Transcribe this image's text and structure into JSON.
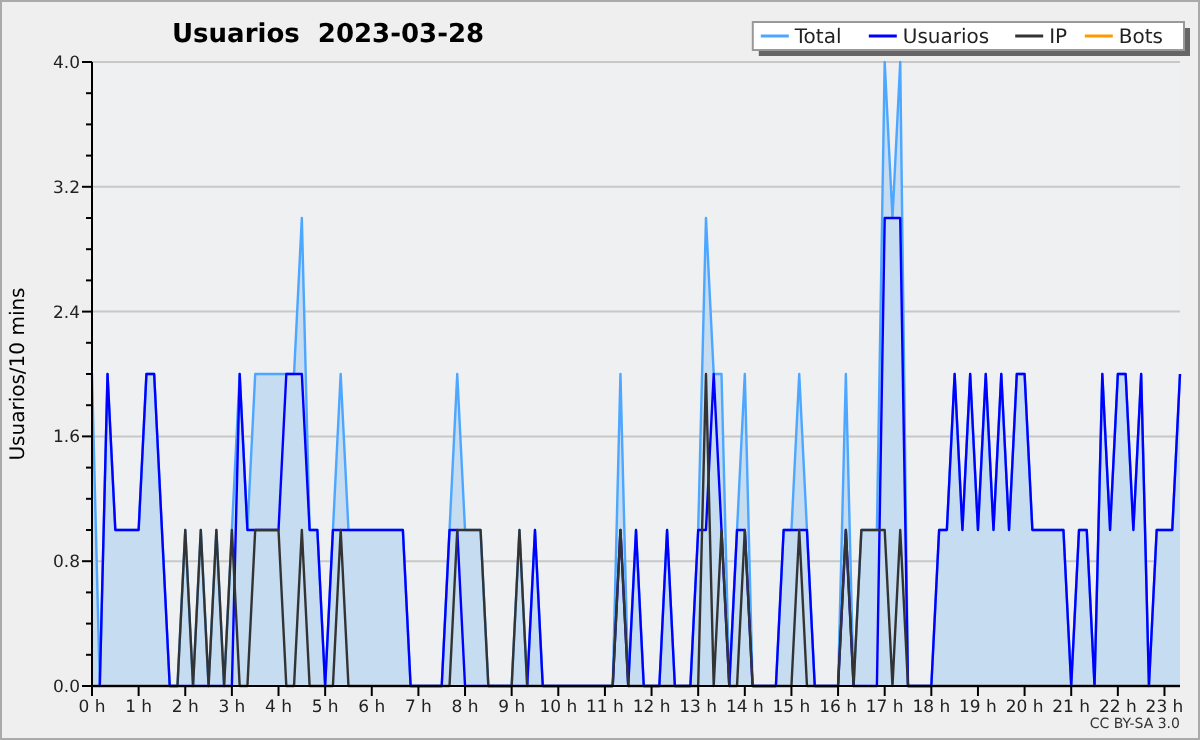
{
  "chart_data": {
    "type": "line",
    "title": "Usuarios  2023-03-28",
    "ylabel": "Usuarios/10 mins",
    "annotations": [
      "CC BY-SA 3.0"
    ],
    "x": [
      0,
      0.167,
      0.333,
      0.5,
      0.667,
      0.833,
      1,
      1.167,
      1.333,
      1.5,
      1.667,
      1.833,
      2,
      2.167,
      2.333,
      2.5,
      2.667,
      2.833,
      3,
      3.167,
      3.333,
      3.5,
      3.667,
      3.833,
      4,
      4.167,
      4.333,
      4.5,
      4.667,
      4.833,
      5,
      5.167,
      5.333,
      5.5,
      5.667,
      5.833,
      6,
      6.167,
      6.333,
      6.5,
      6.667,
      6.833,
      7,
      7.167,
      7.333,
      7.5,
      7.667,
      7.833,
      8,
      8.167,
      8.333,
      8.5,
      8.667,
      8.833,
      9,
      9.167,
      9.333,
      9.5,
      9.667,
      9.833,
      10,
      10.167,
      10.333,
      10.5,
      10.667,
      10.833,
      11,
      11.167,
      11.333,
      11.5,
      11.667,
      11.833,
      12,
      12.167,
      12.333,
      12.5,
      12.667,
      12.833,
      13,
      13.167,
      13.333,
      13.5,
      13.667,
      13.833,
      14,
      14.167,
      14.333,
      14.5,
      14.667,
      14.833,
      15,
      15.167,
      15.333,
      15.5,
      15.667,
      15.833,
      16,
      16.167,
      16.333,
      16.5,
      16.667,
      16.833,
      17,
      17.167,
      17.333,
      17.5,
      17.667,
      17.833,
      18,
      18.167,
      18.333,
      18.5,
      18.667,
      18.833,
      19,
      19.167,
      19.333,
      19.5,
      19.667,
      19.833,
      20,
      20.167,
      20.333,
      20.5,
      20.667,
      20.833,
      21,
      21.167,
      21.333,
      21.5,
      21.667,
      21.833,
      22,
      22.167,
      22.333,
      22.5,
      22.667,
      22.833,
      23,
      23.167,
      23.333
    ],
    "series": [
      {
        "name": "Total",
        "type": "area",
        "color": "#4da6ff",
        "values": [
          2,
          0,
          2,
          1,
          1,
          1,
          1,
          2,
          2,
          1,
          0,
          0,
          1,
          0,
          1,
          0,
          1,
          0,
          1,
          2,
          1,
          2,
          2,
          2,
          2,
          2,
          2,
          3,
          1,
          1,
          0,
          1,
          2,
          1,
          1,
          1,
          1,
          1,
          1,
          1,
          1,
          0,
          0,
          0,
          0,
          0,
          1,
          2,
          1,
          1,
          1,
          0,
          0,
          0,
          0,
          1,
          0,
          1,
          0,
          0,
          0,
          0,
          0,
          0,
          0,
          0,
          0,
          0,
          2,
          0,
          1,
          0,
          0,
          0,
          1,
          0,
          0,
          0,
          1,
          3,
          2,
          2,
          0,
          1,
          2,
          0,
          0,
          0,
          0,
          1,
          1,
          2,
          1,
          0,
          0,
          0,
          0,
          2,
          0,
          1,
          1,
          1,
          4,
          3,
          4,
          0,
          0,
          0,
          0,
          1,
          1,
          2,
          1,
          2,
          1,
          2,
          1,
          2,
          1,
          2,
          2,
          1,
          1,
          1,
          1,
          1,
          0,
          1,
          1,
          0,
          2,
          1,
          2,
          2,
          1,
          2,
          0,
          1,
          1,
          1,
          2
        ]
      },
      {
        "name": "Usuarios",
        "color": "#0000ff",
        "values": [
          null,
          0,
          2,
          1,
          1,
          1,
          1,
          2,
          2,
          1,
          0,
          0,
          0,
          0,
          0,
          0,
          0,
          0,
          0,
          2,
          1,
          1,
          1,
          1,
          1,
          2,
          2,
          2,
          1,
          1,
          0,
          1,
          1,
          1,
          1,
          1,
          1,
          1,
          1,
          1,
          1,
          0,
          0,
          0,
          0,
          0,
          1,
          1,
          0,
          0,
          0,
          0,
          0,
          0,
          0,
          0,
          0,
          1,
          0,
          0,
          0,
          0,
          0,
          0,
          0,
          0,
          0,
          0,
          1,
          0,
          1,
          0,
          0,
          0,
          1,
          0,
          0,
          0,
          1,
          1,
          2,
          1,
          0,
          1,
          1,
          0,
          0,
          0,
          0,
          1,
          1,
          1,
          1,
          0,
          0,
          0,
          0,
          1,
          0,
          0,
          0,
          0,
          3,
          3,
          3,
          0,
          0,
          0,
          0,
          1,
          1,
          2,
          1,
          2,
          1,
          2,
          1,
          2,
          1,
          2,
          2,
          1,
          1,
          1,
          1,
          1,
          0,
          1,
          1,
          0,
          2,
          1,
          2,
          2,
          1,
          2,
          0,
          1,
          1,
          1,
          2
        ]
      },
      {
        "name": "IP",
        "color": "#333333",
        "values": [
          0,
          0,
          0,
          0,
          0,
          0,
          0,
          0,
          0,
          0,
          0,
          0,
          1,
          0,
          1,
          0,
          1,
          0,
          1,
          0,
          0,
          1,
          1,
          1,
          1,
          0,
          0,
          1,
          0,
          0,
          0,
          0,
          1,
          0,
          0,
          0,
          0,
          0,
          0,
          0,
          0,
          0,
          0,
          0,
          0,
          0,
          0,
          1,
          1,
          1,
          1,
          0,
          0,
          0,
          0,
          1,
          0,
          0,
          0,
          0,
          0,
          0,
          0,
          0,
          0,
          0,
          0,
          0,
          1,
          0,
          0,
          0,
          0,
          0,
          0,
          0,
          0,
          0,
          0,
          2,
          0,
          1,
          0,
          0,
          1,
          0,
          0,
          0,
          0,
          0,
          0,
          1,
          0,
          0,
          0,
          0,
          0,
          1,
          0,
          1,
          1,
          1,
          1,
          0,
          1,
          0,
          0,
          0,
          0,
          0,
          0,
          0,
          0,
          0,
          0,
          0,
          0,
          0,
          0,
          0,
          0,
          0,
          0,
          0,
          0,
          0,
          0,
          0,
          0,
          0,
          0,
          0,
          0,
          0,
          0,
          0,
          0,
          0,
          0,
          0,
          0
        ]
      },
      {
        "name": "Bots",
        "color": "#ff9900",
        "values": [
          null,
          null,
          null,
          null,
          null,
          null,
          null,
          null,
          null,
          null,
          null,
          null,
          null,
          null,
          null,
          null,
          null,
          null,
          null,
          null,
          null,
          null,
          null,
          null,
          null,
          null,
          null,
          null,
          null,
          null,
          null,
          null,
          null,
          null,
          null,
          null,
          null,
          null,
          null,
          null,
          null,
          null,
          null,
          null,
          null,
          null,
          null,
          null,
          null,
          null,
          null,
          null,
          null,
          null,
          null,
          null,
          null,
          null,
          null,
          null,
          null,
          null,
          null,
          null,
          null,
          null,
          null,
          null,
          null,
          null,
          null,
          null,
          null,
          null,
          null,
          null,
          null,
          null,
          null,
          null,
          null,
          null,
          null,
          null,
          null,
          null,
          null,
          null,
          null,
          null,
          null,
          null,
          null,
          null,
          null,
          null,
          null,
          null,
          null,
          null,
          null,
          null,
          null,
          null,
          null,
          null,
          null,
          null,
          null,
          null,
          null,
          null,
          null,
          null,
          null,
          null,
          null,
          null,
          null,
          null,
          null,
          null,
          null,
          null,
          null,
          null,
          null,
          null,
          null,
          null,
          null,
          null,
          null,
          null,
          null,
          null,
          null,
          null,
          null,
          null,
          null
        ]
      }
    ],
    "xlim": [
      0,
      23.333
    ],
    "xticks": [
      {
        "value": 0,
        "label": "0 h"
      },
      {
        "value": 1,
        "label": "1 h"
      },
      {
        "value": 2,
        "label": "2 h"
      },
      {
        "value": 3,
        "label": "3 h"
      },
      {
        "value": 4,
        "label": "4 h"
      },
      {
        "value": 5,
        "label": "5 h"
      },
      {
        "value": 6,
        "label": "6 h"
      },
      {
        "value": 7,
        "label": "7 h"
      },
      {
        "value": 8,
        "label": "8 h"
      },
      {
        "value": 9,
        "label": "9 h"
      },
      {
        "value": 10,
        "label": "10 h"
      },
      {
        "value": 11,
        "label": "11 h"
      },
      {
        "value": 12,
        "label": "12 h"
      },
      {
        "value": 13,
        "label": "13 h"
      },
      {
        "value": 14,
        "label": "14 h"
      },
      {
        "value": 15,
        "label": "15 h"
      },
      {
        "value": 16,
        "label": "16 h"
      },
      {
        "value": 17,
        "label": "17 h"
      },
      {
        "value": 18,
        "label": "18 h"
      },
      {
        "value": 19,
        "label": "19 h"
      },
      {
        "value": 20,
        "label": "20 h"
      },
      {
        "value": 21,
        "label": "21 h"
      },
      {
        "value": 22,
        "label": "22 h"
      },
      {
        "value": 23,
        "label": "23 h"
      }
    ],
    "ylim": [
      0,
      4
    ],
    "yticks": [
      {
        "value": 0,
        "label": "0.0"
      },
      {
        "value": 0.2,
        "label": null
      },
      {
        "value": 0.4,
        "label": null
      },
      {
        "value": 0.6,
        "label": null
      },
      {
        "value": 0.8,
        "label": "0.8"
      },
      {
        "value": 1,
        "label": null
      },
      {
        "value": 1.2,
        "label": null
      },
      {
        "value": 1.4,
        "label": null
      },
      {
        "value": 1.6,
        "label": "1.6"
      },
      {
        "value": 1.8,
        "label": null
      },
      {
        "value": 2,
        "label": null
      },
      {
        "value": 2.2,
        "label": null
      },
      {
        "value": 2.4,
        "label": "2.4"
      },
      {
        "value": 2.6,
        "label": null
      },
      {
        "value": 2.8,
        "label": null
      },
      {
        "value": 3,
        "label": null
      },
      {
        "value": 3.2,
        "label": "3.2"
      },
      {
        "value": 3.4,
        "label": null
      },
      {
        "value": 3.6,
        "label": null
      },
      {
        "value": 3.8,
        "label": null
      },
      {
        "value": 4,
        "label": "4.0"
      }
    ],
    "grid": "y",
    "legend": "top right",
    "marker": "none",
    "line_style": "solid"
  }
}
